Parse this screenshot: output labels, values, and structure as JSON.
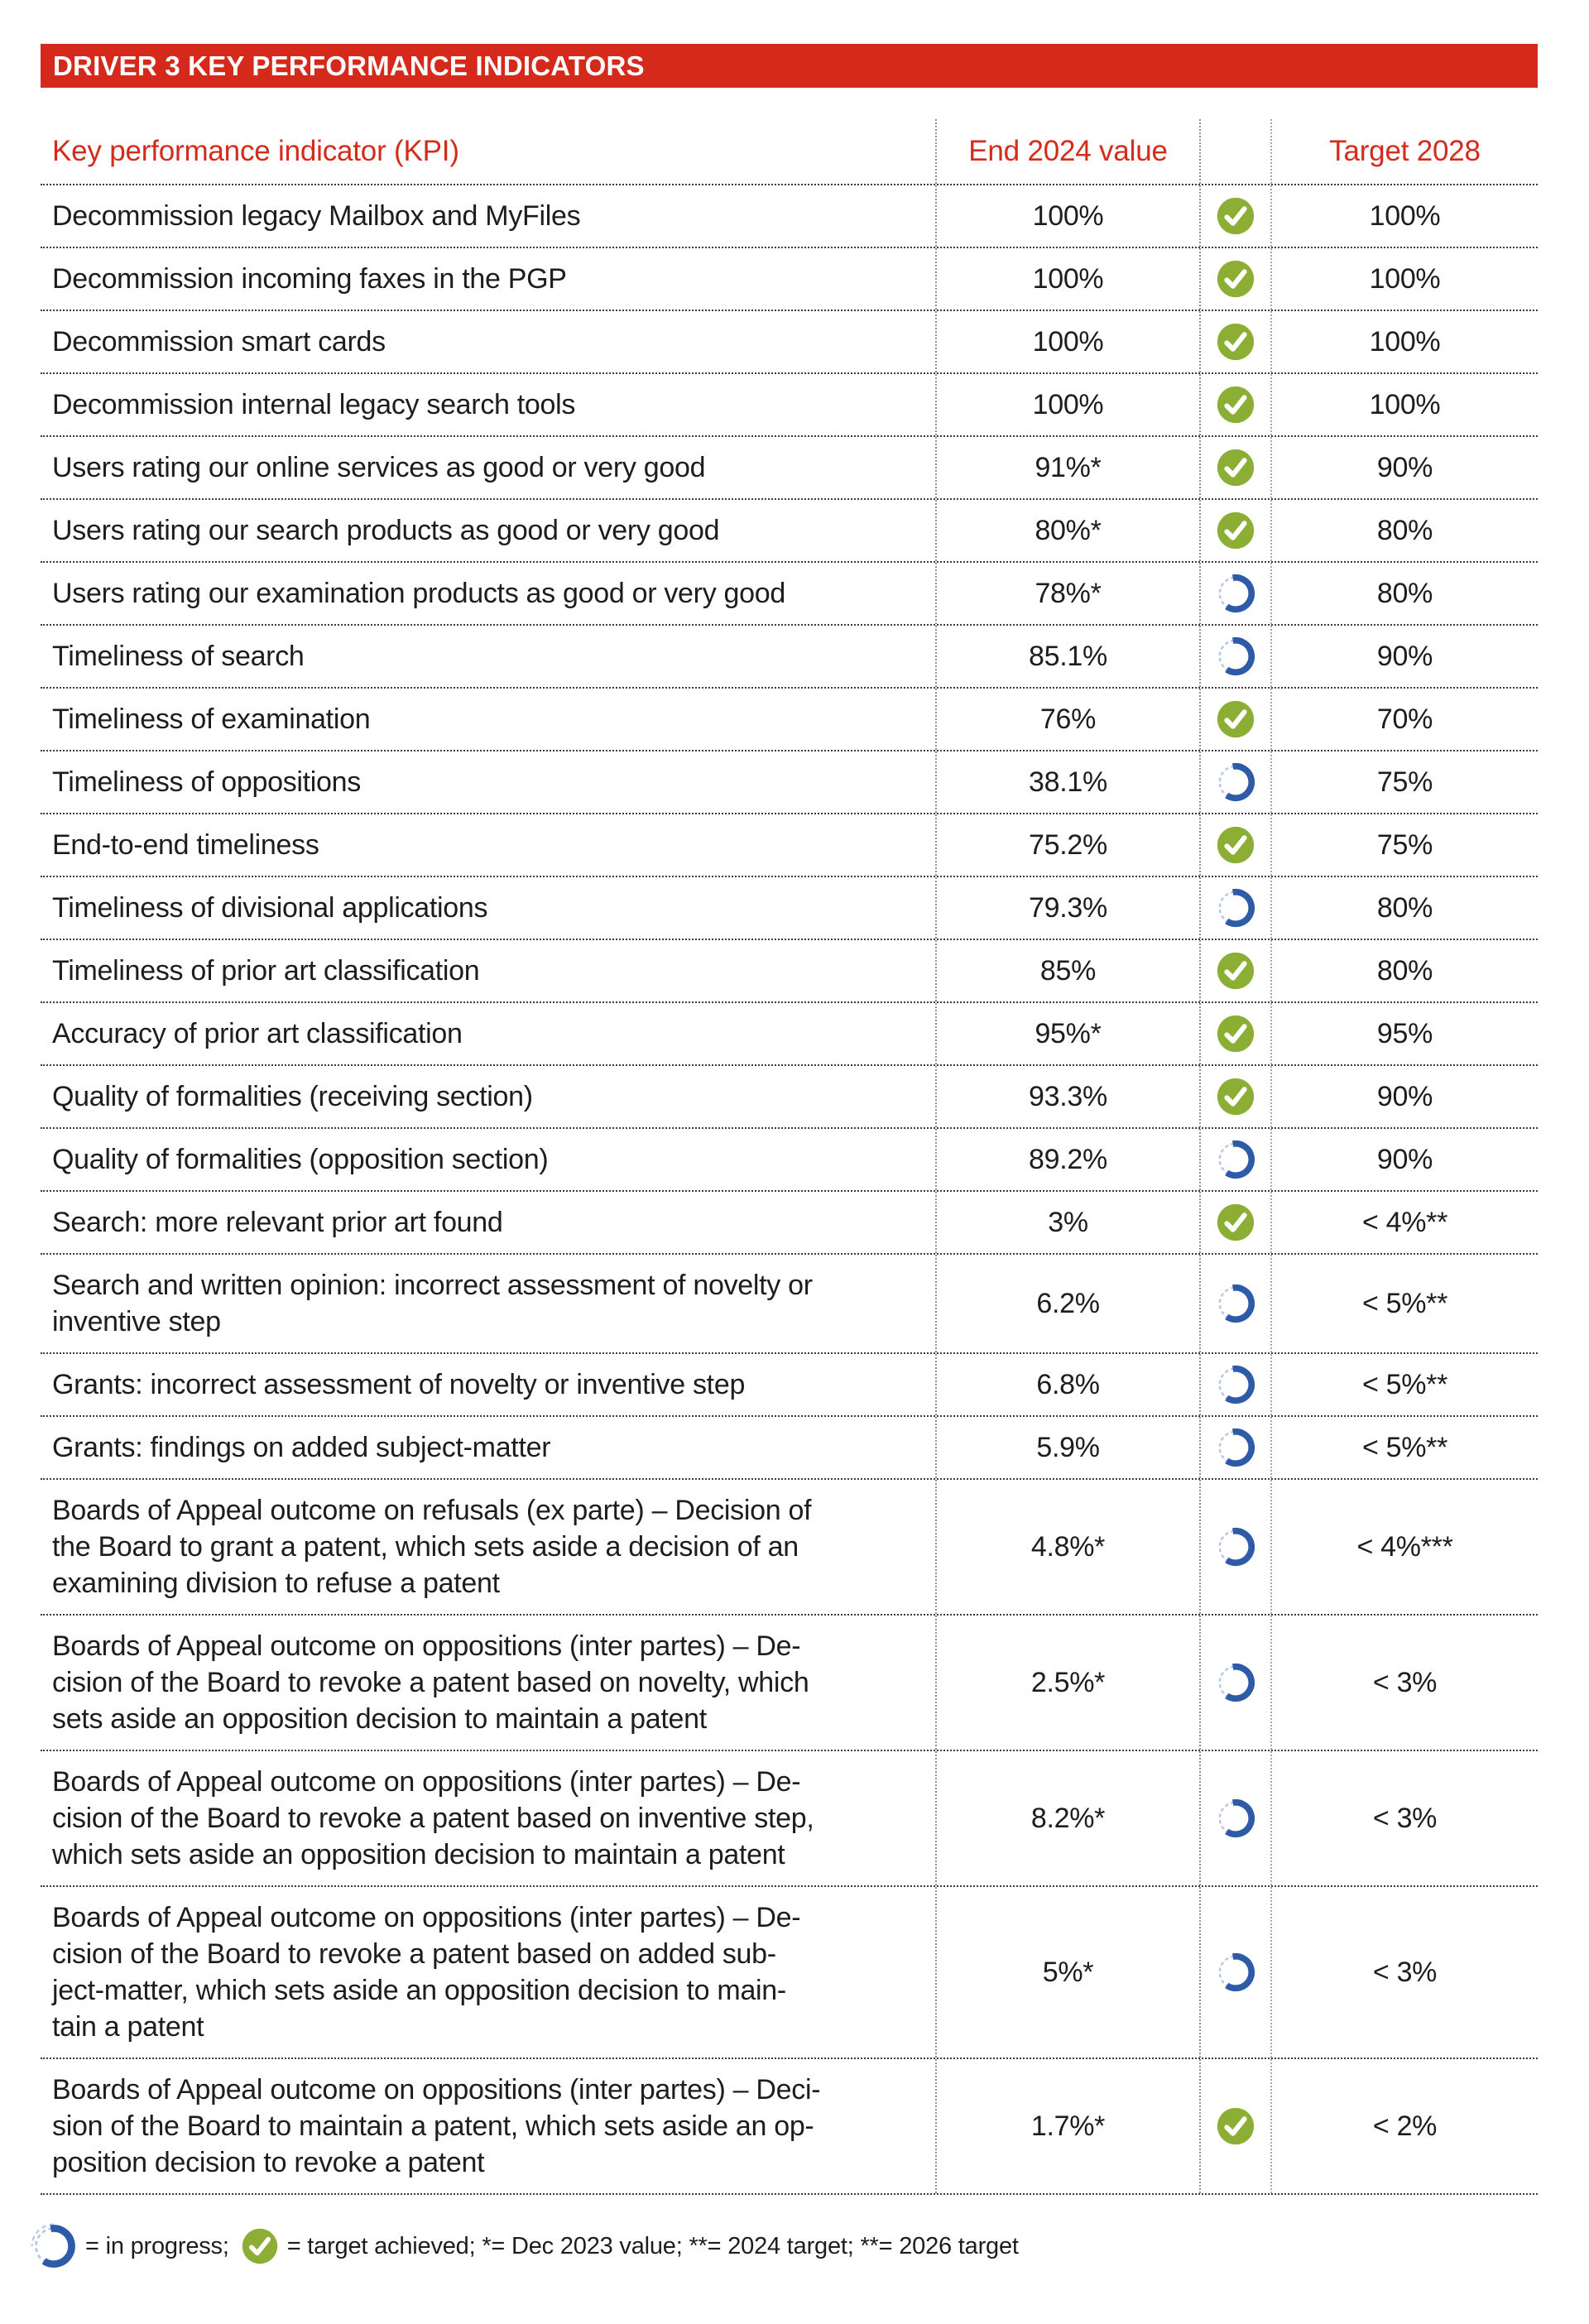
{
  "banner": {
    "title": "DRIVER 3 KEY PERFORMANCE INDICATORS"
  },
  "colors": {
    "accent_red": "#d5291c",
    "achieved_green": "#8dae35",
    "in_progress_blue": "#2d5ba8",
    "in_progress_track_blue": "#b6c6e3",
    "text": "#1d1d1b"
  },
  "icons": {
    "achieved": "target-achieved-check-circle-icon",
    "in_progress": "in-progress-ring-icon"
  },
  "table": {
    "headers": {
      "kpi": "Key performance indicator (KPI)",
      "value": "End 2024 value",
      "status": "",
      "target": "Target 2028"
    },
    "rows": [
      {
        "kpi": "Decommission legacy Mailbox and MyFiles",
        "value": "100%",
        "status": "achieved",
        "target": "100%"
      },
      {
        "kpi": "Decommission incoming faxes in the PGP",
        "value": "100%",
        "status": "achieved",
        "target": "100%"
      },
      {
        "kpi": "Decommission smart cards",
        "value": "100%",
        "status": "achieved",
        "target": "100%"
      },
      {
        "kpi": "Decommission internal legacy search tools",
        "value": "100%",
        "status": "achieved",
        "target": "100%"
      },
      {
        "kpi": "Users rating our online services as good or very good",
        "value": "91%*",
        "status": "achieved",
        "target": "90%"
      },
      {
        "kpi": "Users rating our search products as good or very good",
        "value": "80%*",
        "status": "achieved",
        "target": "80%"
      },
      {
        "kpi": "Users rating our examination products as good or very good",
        "value": "78%*",
        "status": "in_progress",
        "target": "80%"
      },
      {
        "kpi": "Timeliness of search",
        "value": "85.1%",
        "status": "in_progress",
        "target": "90%"
      },
      {
        "kpi": "Timeliness of examination",
        "value": "76%",
        "status": "achieved",
        "target": "70%"
      },
      {
        "kpi": "Timeliness of oppositions",
        "value": "38.1%",
        "status": "in_progress",
        "target": "75%"
      },
      {
        "kpi": "End-to-end timeliness",
        "value": "75.2%",
        "status": "achieved",
        "target": "75%"
      },
      {
        "kpi": "Timeliness of divisional applications",
        "value": "79.3%",
        "status": "in_progress",
        "target": "80%"
      },
      {
        "kpi": "Timeliness of prior art classification",
        "value": "85%",
        "status": "achieved",
        "target": "80%"
      },
      {
        "kpi": "Accuracy of prior art classification",
        "value": "95%*",
        "status": "achieved",
        "target": "95%"
      },
      {
        "kpi": "Quality of formalities (receiving section)",
        "value": "93.3%",
        "status": "achieved",
        "target": "90%"
      },
      {
        "kpi": "Quality of formalities (opposition section)",
        "value": "89.2%",
        "status": "in_progress",
        "target": "90%"
      },
      {
        "kpi": "Search: more relevant prior art found",
        "value": "3%",
        "status": "achieved",
        "target": "< 4%**"
      },
      {
        "kpi": "Search and written opinion: incorrect assessment of novelty or\ninventive step",
        "value": "6.2%",
        "status": "in_progress",
        "target": "< 5%**"
      },
      {
        "kpi": "Grants: incorrect assessment of novelty or inventive step",
        "value": "6.8%",
        "status": "in_progress",
        "target": "< 5%**"
      },
      {
        "kpi": "Grants: findings on added subject-matter",
        "value": "5.9%",
        "status": "in_progress",
        "target": "< 5%**"
      },
      {
        "kpi": "Boards of Appeal outcome on refusals (ex parte) – Decision of\nthe Board to grant a patent, which sets aside a decision of an\nexamining division to refuse a patent",
        "value": "4.8%*",
        "status": "in_progress",
        "target": "< 4%***"
      },
      {
        "kpi": "Boards of Appeal outcome on oppositions (inter partes) – De-\ncision of the Board to revoke a patent based on novelty, which\nsets aside an opposition decision to maintain a patent",
        "value": "2.5%*",
        "status": "in_progress",
        "target": "< 3%"
      },
      {
        "kpi": "Boards of Appeal outcome on oppositions (inter partes) – De-\ncision of the Board to revoke a patent based on inventive step,\nwhich sets aside an opposition decision to maintain a patent",
        "value": "8.2%*",
        "status": "in_progress",
        "target": "< 3%"
      },
      {
        "kpi": "Boards of Appeal outcome on oppositions (inter partes) – De-\ncision of the Board to revoke a patent based on added sub-\nject-matter, which sets aside an opposition decision to main-\ntain a patent",
        "value": "5%*",
        "status": "in_progress",
        "target": "< 3%"
      },
      {
        "kpi": "Boards of Appeal outcome on oppositions (inter partes) – Deci-\nsion of the Board to maintain a patent, which sets aside an op-\nposition decision to revoke a patent",
        "value": "1.7%*",
        "status": "achieved",
        "target": "< 2%"
      }
    ]
  },
  "legend": {
    "in_progress": "= in progress;",
    "achieved": "= target achieved; *= Dec 2023 value; **= 2024 target; **= 2026 target"
  }
}
